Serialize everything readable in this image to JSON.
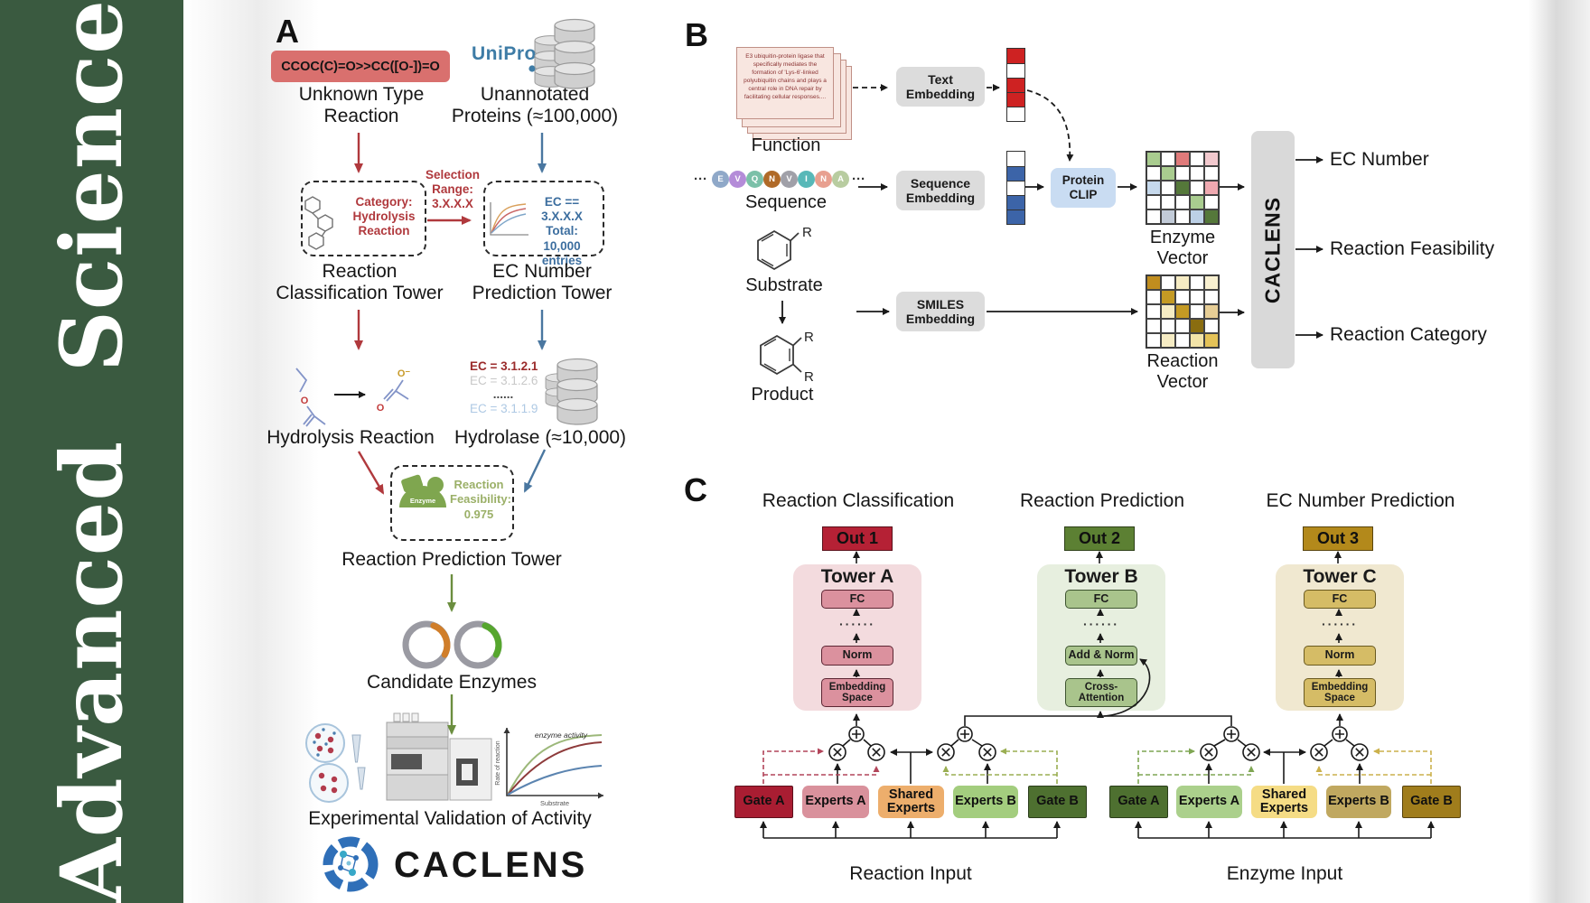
{
  "journal": {
    "title": "Advanced Science",
    "bar_color": "#3A5A40"
  },
  "panelA": {
    "label": "A",
    "smiles_box": {
      "text": "CCOC(C)=O>>CC([O-])=O",
      "bg": "#D9706E",
      "fg": "#7E2020"
    },
    "unknown_type_label": "Unknown Type\nReaction",
    "uniprot_label": "UniProt",
    "unannotated_label": "Unannotated\nProteins (≈100,000)",
    "category_box_text": "Category:\nHydrolysis\nReaction",
    "selection_text": "Selection\nRange:\n3.X.X.X",
    "ec_box_text": "EC == 3.X.X.X\nTotal: 10,000\nentries",
    "classification_tower_label": "Reaction\nClassification Tower",
    "ec_tower_label": "EC Number\nPrediction Tower",
    "hydrolysis_label": "Hydrolysis Reaction",
    "ec_list": [
      {
        "text": "EC = 3.1.2.1",
        "color": "#9B2B2B"
      },
      {
        "text": "EC = 3.1.2.6",
        "color": "#C8C8C8"
      },
      {
        "text": "......",
        "color": "#4a4a4a"
      },
      {
        "text": "EC = 3.1.1.9",
        "color": "#AEC9E4"
      }
    ],
    "hydrolase_label": "Hydrolase (≈10,000)",
    "enzyme_icon_label": "Enzyme",
    "feasibility_text": "Reaction\nFeasibility:\n0.975",
    "prediction_tower_label": "Reaction Prediction Tower",
    "candidate_label": "Candidate Enzymes",
    "validation_label": "Experimental Validation of Activity",
    "logo_text": "CACLENS",
    "graph": {
      "ylabel": "Rate of reaction",
      "xlabel": "Substrate",
      "annotation": "enzyme activity"
    }
  },
  "panelB": {
    "label": "B",
    "function_card_text": "E3 ubiquitin-protein ligase that specifically mediates the formation of 'Lys-6'-linked polyubiquitin chains and plays a central role in DNA repair by facilitating cellular responses....",
    "function_label": "Function",
    "sequence": {
      "ellipsis": "···",
      "letters": [
        "E",
        "V",
        "Q",
        "N",
        "V",
        "I",
        "N",
        "A"
      ],
      "colors": [
        "#8FA8C8",
        "#B48CD8",
        "#7BC0A8",
        "#B06A28",
        "#A0A0A8",
        "#58B8B8",
        "#E8A090",
        "#B8CCA0"
      ]
    },
    "sequence_label": "Sequence",
    "substrate_label": "Substrate",
    "product_label": "Product",
    "r_label": "R",
    "text_embedding_label": "Text\nEmbedding",
    "sequence_embedding_label": "Sequence\nEmbedding",
    "smiles_embedding_label": "SMILES\nEmbedding",
    "protein_clip_label": "Protein\nCLIP",
    "text_vector_cells": [
      "#CE2222",
      "#FFFFFF",
      "#CE2222",
      "#CE2222",
      "#FFFFFF"
    ],
    "sequence_vector_cells": [
      "#FFFFFF",
      "#3C64A8",
      "#FFFFFF",
      "#3C64A8",
      "#3C64A8"
    ],
    "enzyme_vector": {
      "label": "Enzyme Vector",
      "cells": [
        "#A9CC8F",
        "#FFFFFF",
        "#DF7A7A",
        "#FFFFFF",
        "#F2C9CE",
        "#FFFFFF",
        "#A9CC8F",
        "#FFFFFF",
        "#FFFFFF",
        "#FFFFFF",
        "#C6D9EC",
        "#FFFFFF",
        "#55783A",
        "#FFFFFF",
        "#EFA9B0",
        "#FFFFFF",
        "#FFFFFF",
        "#FFFFFF",
        "#A9CC8F",
        "#FFFFFF",
        "#FFFFFF",
        "#C2CBD8",
        "#FFFFFF",
        "#BCD0E6",
        "#55783A"
      ]
    },
    "reaction_vector": {
      "label": "Reaction Vector",
      "cells": [
        "#C08D1E",
        "#FFFFFF",
        "#F6ECC4",
        "#FFFFFF",
        "#F8F0D0",
        "#FFFFFF",
        "#C49A24",
        "#FFFFFF",
        "#FFFFFF",
        "#FFFFFF",
        "#FFFFFF",
        "#F6ECC4",
        "#C49A24",
        "#FFFFFF",
        "#E7CE96",
        "#FFFFFF",
        "#FFFFFF",
        "#FFFFFF",
        "#8A6D10",
        "#FFFFFF",
        "#FFFFFF",
        "#F6ECC4",
        "#FFFFFF",
        "#F3E4A8",
        "#E4C257"
      ]
    },
    "caclens_bar_label": "CACLENS",
    "outputs": [
      "EC Number",
      "Reaction Feasibility",
      "Reaction Category"
    ]
  },
  "panelC": {
    "label": "C",
    "dots": "······",
    "columns": [
      {
        "header": "Reaction Classification",
        "out_label": "Out 1",
        "out_bg": "#B52135",
        "tower_label": "Tower A",
        "tower_bg": "#F3DBDE",
        "box_bg": "#DB919E",
        "box_border": "#5C2633",
        "box1": "FC",
        "box2": "Norm",
        "box3": "Embedding\nSpace"
      },
      {
        "header": "Reaction Prediction",
        "out_label": "Out 2",
        "out_bg": "#5C8033",
        "tower_label": "Tower B",
        "tower_bg": "#E7EFDF",
        "box_bg": "#A9C48C",
        "box_border": "#3E5430",
        "box1": "FC",
        "box2": "Add & Norm",
        "box3": "Cross-\nAttention"
      },
      {
        "header": "EC Number Prediction",
        "out_label": "Out 3",
        "out_bg": "#B3891B",
        "tower_label": "Tower C",
        "tower_bg": "#F0E8D0",
        "box_bg": "#D5BC66",
        "box_border": "#6A5A20",
        "box1": "FC",
        "box2": "Norm",
        "box3": "Embedding\nSpace"
      }
    ],
    "reaction_group": {
      "input_label": "Reaction Input",
      "boxes": [
        {
          "label": "Gate A",
          "bg": "#A91D32"
        },
        {
          "label": "Experts A",
          "bg": "#D9919C"
        },
        {
          "label": "Shared\nExperts",
          "bg": "#EDAE6C"
        },
        {
          "label": "Experts B",
          "bg": "#A3CD7E"
        },
        {
          "label": "Gate B",
          "bg": "#4E7030"
        }
      ]
    },
    "enzyme_group": {
      "input_label": "Enzyme Input",
      "boxes": [
        {
          "label": "Gate A",
          "bg": "#4E7030"
        },
        {
          "label": "Experts A",
          "bg": "#ABD08C"
        },
        {
          "label": "Shared\nExperts",
          "bg": "#F5DC85"
        },
        {
          "label": "Experts B",
          "bg": "#C0A860"
        },
        {
          "label": "Gate B",
          "bg": "#A07D1C"
        }
      ]
    }
  }
}
